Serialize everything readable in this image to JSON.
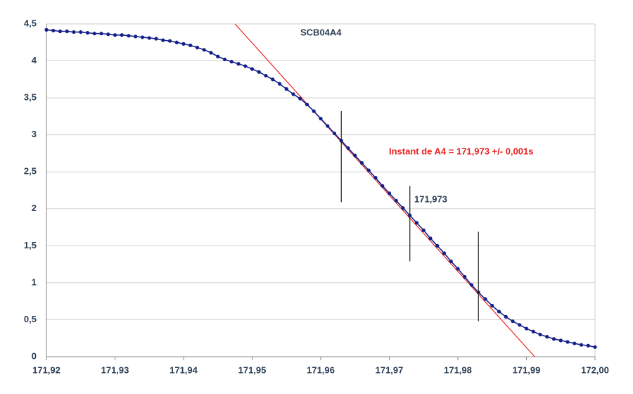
{
  "chart_data": {
    "type": "line",
    "x": [
      171.92,
      171.921,
      171.922,
      171.923,
      171.924,
      171.925,
      171.926,
      171.927,
      171.928,
      171.929,
      171.93,
      171.931,
      171.932,
      171.933,
      171.934,
      171.935,
      171.936,
      171.937,
      171.938,
      171.939,
      171.94,
      171.941,
      171.942,
      171.943,
      171.944,
      171.945,
      171.946,
      171.947,
      171.948,
      171.949,
      171.95,
      171.951,
      171.952,
      171.953,
      171.954,
      171.955,
      171.956,
      171.957,
      171.958,
      171.959,
      171.96,
      171.961,
      171.962,
      171.963,
      171.964,
      171.965,
      171.966,
      171.967,
      171.968,
      171.969,
      171.97,
      171.971,
      171.972,
      171.973,
      171.974,
      171.975,
      171.976,
      171.977,
      171.978,
      171.979,
      171.98,
      171.981,
      171.982,
      171.983,
      171.984,
      171.985,
      171.986,
      171.987,
      171.988,
      171.989,
      171.99,
      171.991,
      171.992,
      171.993,
      171.994,
      171.995,
      171.996,
      171.997,
      171.998,
      171.999,
      172.0
    ],
    "series": [
      {
        "color": "#14208a",
        "values": [
          4.42,
          4.41,
          4.4,
          4.4,
          4.39,
          4.39,
          4.38,
          4.37,
          4.37,
          4.36,
          4.35,
          4.35,
          4.34,
          4.33,
          4.32,
          4.31,
          4.3,
          4.28,
          4.27,
          4.25,
          4.23,
          4.21,
          4.18,
          4.15,
          4.11,
          4.06,
          4.02,
          3.99,
          3.96,
          3.93,
          3.89,
          3.85,
          3.8,
          3.75,
          3.69,
          3.62,
          3.55,
          3.49,
          3.41,
          3.32,
          3.22,
          3.12,
          3.02,
          2.92,
          2.82,
          2.72,
          2.62,
          2.52,
          2.42,
          2.31,
          2.21,
          2.11,
          2.01,
          1.91,
          1.81,
          1.71,
          1.6,
          1.5,
          1.4,
          1.29,
          1.19,
          1.08,
          0.97,
          0.87,
          0.78,
          0.69,
          0.61,
          0.54,
          0.48,
          0.43,
          0.38,
          0.34,
          0.3,
          0.27,
          0.24,
          0.22,
          0.2,
          0.18,
          0.16,
          0.15,
          0.13
        ]
      }
    ],
    "tangent": {
      "color": "#e8231f",
      "x": [
        171.9475,
        171.9912
      ],
      "y": [
        4.5,
        0
      ]
    },
    "markers": [
      {
        "x": 171.963,
        "y": [
          2.09,
          3.32
        ]
      },
      {
        "x": 171.973,
        "y": [
          1.29,
          2.31
        ]
      },
      {
        "x": 171.983,
        "y": [
          0.48,
          1.69
        ]
      }
    ],
    "annotations": [
      {
        "text": "SCB04A4",
        "color": "#2b3f55"
      },
      {
        "text": "Instant de A4 = 171,973 +/- 0,001s",
        "color": "#e8231f"
      },
      {
        "text": "171,973",
        "color": "#2b3f55"
      }
    ],
    "xlim": [
      171.92,
      172.0
    ],
    "xticks": [
      {
        "value": 171.92,
        "label": "171,92"
      },
      {
        "value": 171.93,
        "label": "171,93"
      },
      {
        "value": 171.94,
        "label": "171,94"
      },
      {
        "value": 171.95,
        "label": "171,95"
      },
      {
        "value": 171.96,
        "label": "171,96"
      },
      {
        "value": 171.97,
        "label": "171,97"
      },
      {
        "value": 171.98,
        "label": "171,98"
      },
      {
        "value": 171.99,
        "label": "171,99"
      },
      {
        "value": 172.0,
        "label": "172,00"
      }
    ],
    "ylim": [
      0,
      4.5
    ],
    "yticks": [
      0,
      {
        "value": 0.5,
        "label": "0,5"
      },
      1,
      {
        "value": 1.5,
        "label": "1,5"
      },
      2,
      {
        "value": 2.5,
        "label": "2,5"
      },
      3,
      {
        "value": 3.5,
        "label": "3,5"
      },
      4,
      {
        "value": 4.5,
        "label": "4,5"
      }
    ],
    "grid": true
  }
}
